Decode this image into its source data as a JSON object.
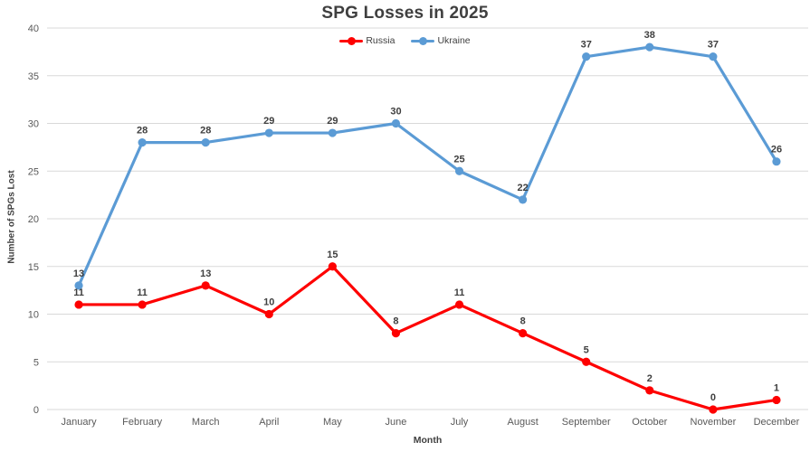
{
  "chart_data": {
    "type": "line",
    "title": "SPG Losses in 2025",
    "xlabel": "Month",
    "ylabel": "Number of SPGs Lost",
    "categories": [
      "January",
      "February",
      "March",
      "April",
      "May",
      "June",
      "July",
      "August",
      "September",
      "October",
      "November",
      "December"
    ],
    "series": [
      {
        "name": "Russia",
        "color": "#fe0000",
        "values": [
          11,
          11,
          13,
          10,
          15,
          8,
          11,
          8,
          5,
          2,
          0,
          1
        ]
      },
      {
        "name": "Ukraine",
        "color": "#5b9bd5",
        "values": [
          13,
          28,
          28,
          29,
          29,
          30,
          25,
          22,
          37,
          38,
          37,
          26
        ]
      }
    ],
    "ylim": [
      0,
      40
    ],
    "yticks": [
      0,
      5,
      10,
      15,
      20,
      25,
      30,
      35,
      40
    ],
    "grid": true,
    "legend_position": "top-center",
    "data_labels": true,
    "colors": {
      "gridline": "#d9d9d9",
      "tick_label": "#595959",
      "data_label": "#3f3f3f",
      "title": "#3f3f3f",
      "background": "#ffffff"
    }
  }
}
